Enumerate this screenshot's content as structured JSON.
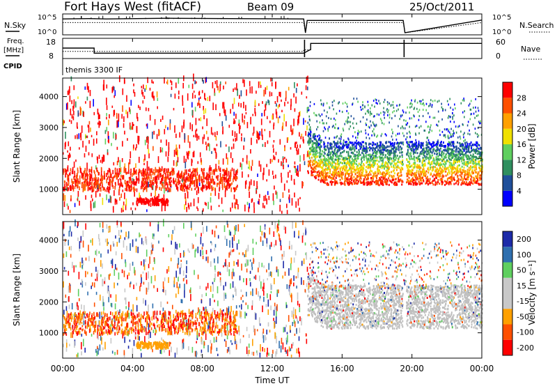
{
  "header": {
    "title": "Fort Hays West (fitACF)",
    "beam": "Beam 09",
    "date": "25/Oct/2011"
  },
  "left_labels": {
    "nsky": "N.Sky",
    "freq": "Freq.",
    "freq_unit": "[MHz]",
    "cpid": "CPID"
  },
  "right_labels": {
    "nsearch": "N.Search",
    "nave": "Nave"
  },
  "top_axis_ticks": {
    "noise_left": [
      "10^5",
      "10^0"
    ],
    "noise_right": [
      "10^5",
      "10^0"
    ],
    "freq_left": [
      "18",
      "8"
    ],
    "nave_right": [
      "60",
      "0"
    ]
  },
  "cpid_text": "themis 3300 IF",
  "x_ticks": [
    "00:00",
    "04:00",
    "08:00",
    "12:00",
    "16:00",
    "20:00",
    "00:00"
  ],
  "xlabel": "Time UT",
  "colors": {
    "power": [
      "#0000ff",
      "#1f4f9a",
      "#2f8f5f",
      "#5fcf5f",
      "#f0e000",
      "#ffa000",
      "#ff5000",
      "#ff0000"
    ],
    "velocity": [
      "#ff0000",
      "#ff5000",
      "#ffa000",
      "#c8c8c8",
      "#c8c8c8",
      "#5fcf5f",
      "#2f6faf",
      "#1c2aa8"
    ],
    "ground_scatter": "#c0c0c0"
  },
  "chart_data": [
    {
      "type": "line",
      "name": "noise",
      "x": [
        0,
        1.5,
        2.5,
        6,
        13.8,
        13.9,
        14,
        19.5,
        19.6,
        24
      ],
      "y_sky_log": [
        4.0,
        4.1,
        4.0,
        4.2,
        4.0,
        0.2,
        3.6,
        3.6,
        0.2,
        3.7
      ],
      "y_search_log": [
        3.0,
        3.0,
        3.0,
        3.0,
        3.0,
        0.2,
        3.0,
        3.0,
        0.2,
        3.0
      ],
      "xlim": [
        0,
        24
      ]
    },
    {
      "type": "line",
      "name": "freq-nave",
      "x": [
        0,
        1.8,
        1.8,
        13.8,
        13.8,
        14.2,
        14.2,
        24
      ],
      "freq_mhz": [
        13.2,
        13.2,
        10.3,
        10.3,
        10.3,
        12.4,
        15.9,
        15.9
      ],
      "nave": [
        20,
        20,
        20,
        20,
        25,
        25,
        47,
        47
      ],
      "freq_ylim": [
        8,
        18
      ],
      "nave_ylim": [
        0,
        60
      ]
    },
    {
      "type": "heatmap",
      "title": "",
      "ylabel": "Slant Range [km]",
      "colorbar_label": "Power [dB]",
      "colorbar_ticks": [
        "4",
        "8",
        "12",
        "16",
        "20",
        "24",
        "28"
      ],
      "yticks": [
        1000,
        2000,
        3000,
        4000
      ],
      "ylim": [
        180,
        4600
      ],
      "xlim": [
        0,
        24
      ]
    },
    {
      "type": "heatmap",
      "title": "",
      "ylabel": "Slant Range [km]",
      "colorbar_label": "Velocity [m s⁻¹]",
      "colorbar_ticks": [
        "200",
        "100",
        "50",
        "15",
        "-15",
        "-50",
        "-100",
        "-200"
      ],
      "yticks": [
        1000,
        2000,
        3000,
        4000
      ],
      "ylim": [
        180,
        4600
      ],
      "xlim": [
        0,
        24
      ]
    }
  ]
}
